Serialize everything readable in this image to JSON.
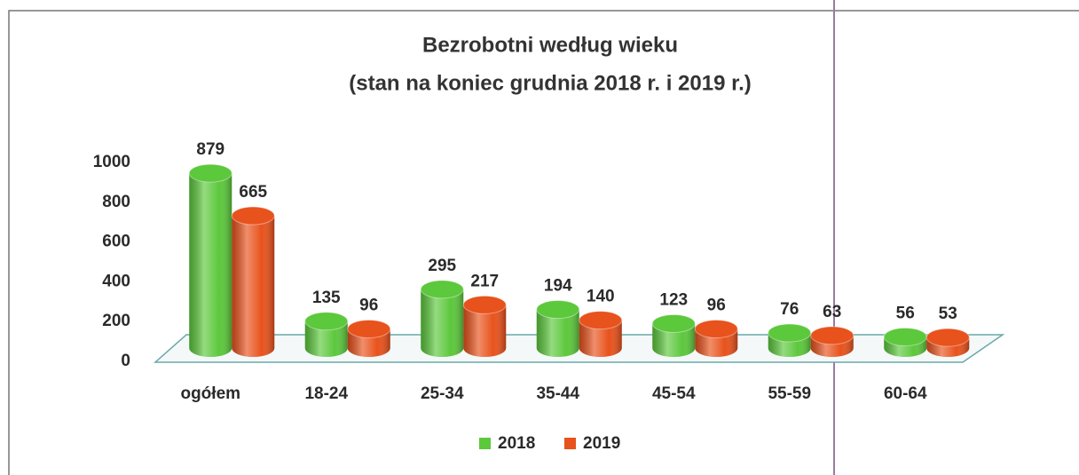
{
  "chart_data": {
    "type": "bar",
    "title": "Bezrobotni według wieku",
    "subtitle": "(stan na koniec grudnia 2018 r. i 2019 r.)",
    "categories": [
      "ogółem",
      "18-24",
      "25-34",
      "35-44",
      "45-54",
      "55-59",
      "60-64"
    ],
    "series": [
      {
        "name": "2018",
        "color": "#5cc83c",
        "values": [
          879,
          135,
          295,
          194,
          123,
          76,
          56
        ]
      },
      {
        "name": "2019",
        "color": "#e8521c",
        "values": [
          665,
          96,
          217,
          140,
          96,
          63,
          53
        ]
      }
    ],
    "ylim": [
      0,
      1000
    ],
    "yticks": [
      0,
      200,
      400,
      600,
      800,
      1000
    ],
    "grid": false,
    "legend": "bottom"
  }
}
